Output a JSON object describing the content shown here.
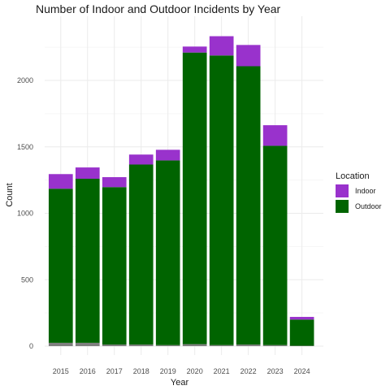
{
  "colors": {
    "Indoor": "#9932CC",
    "Outdoor": "#006400",
    "unlabeled": "#7f7f7f",
    "grid_major": "#ebebeb",
    "grid_minor": "#f4f4f4"
  },
  "chart_data": {
    "type": "bar",
    "stacked": true,
    "title": "Number of Indoor and Outdoor Incidents by Year",
    "xlabel": "Year",
    "ylabel": "Count",
    "categories": [
      "2015",
      "2016",
      "2017",
      "2018",
      "2019",
      "2020",
      "2021",
      "2022",
      "2023",
      "2024"
    ],
    "yticks": [
      "0",
      "500",
      "1000",
      "1500",
      "2000"
    ],
    "ylim": [
      0,
      2420
    ],
    "grid": true,
    "legend_position": "right",
    "legend_title": "Location",
    "series": [
      {
        "key": "unlabeled",
        "values": [
          25,
          25,
          12,
          12,
          8,
          15,
          8,
          12,
          8,
          3
        ]
      },
      {
        "key": "Outdoor",
        "name": "Outdoor",
        "values": [
          1160,
          1235,
          1185,
          1355,
          1390,
          2195,
          2180,
          2095,
          1500,
          197
        ]
      },
      {
        "key": "Indoor",
        "name": "Indoor",
        "values": [
          110,
          85,
          75,
          75,
          80,
          45,
          145,
          160,
          155,
          20
        ]
      }
    ],
    "legend": [
      {
        "key": "Indoor",
        "label": "Indoor"
      },
      {
        "key": "Outdoor",
        "label": "Outdoor"
      }
    ]
  }
}
